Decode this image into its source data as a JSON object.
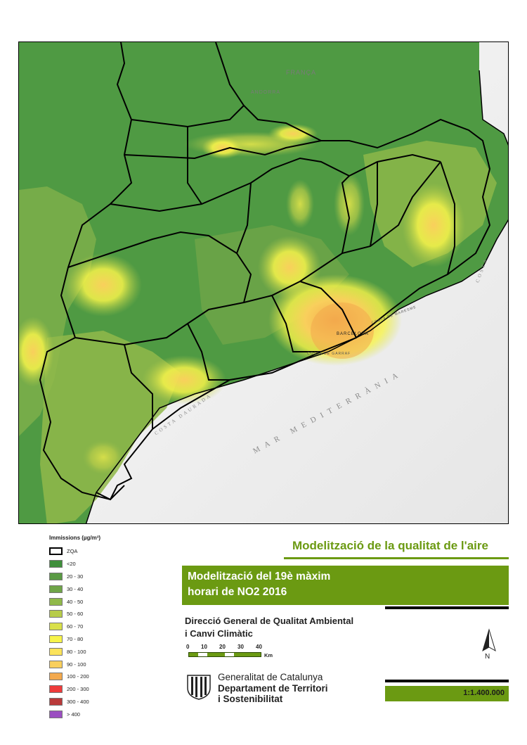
{
  "map": {
    "places": {
      "andorra": "ANDORRA",
      "franca": "FRANÇA",
      "barcelona": "BARCELONA"
    },
    "coast_labels": {
      "costa_daurada": "COSTA DAURADA",
      "mar_mediterrania": "MAR MEDITERRÀNIA",
      "costa_brava": "COSTA",
      "costa_garraf": "COSTA DE GARRAF",
      "costa_maresme": "COSTA DE MARESME"
    },
    "colors": {
      "lt20": "#3f8f3b",
      "20_30": "#5a9a44",
      "30_40": "#6fa548",
      "40_50": "#90b94a",
      "50_60": "#b7cc49",
      "60_70": "#d9e04a",
      "70_80": "#f7f44a",
      "80_100": "#fbe35a",
      "90_100": "#f9cf5c",
      "100_200": "#f3a94d",
      "sea": "#f2f2f2",
      "boundary": "#000000"
    }
  },
  "legend": {
    "title": "Immissions (µg/m³)",
    "items": [
      {
        "label": "ZQA",
        "color": "#ffffff",
        "outline": true
      },
      {
        "label": "<20",
        "color": "#3f8f3b"
      },
      {
        "label": "20 - 30",
        "color": "#5a9a44"
      },
      {
        "label": "30 - 40",
        "color": "#6fa548"
      },
      {
        "label": "40 - 50",
        "color": "#90b94a"
      },
      {
        "label": "50 - 60",
        "color": "#b7cc49"
      },
      {
        "label": "60 - 70",
        "color": "#d9e04a"
      },
      {
        "label": "70 - 80",
        "color": "#f7f44a"
      },
      {
        "label": "80 - 100",
        "color": "#fbe35a"
      },
      {
        "label": "90 - 100",
        "color": "#f9cf5c"
      },
      {
        "label": "100 - 200",
        "color": "#f3a94d"
      },
      {
        "label": "200 - 300",
        "color": "#ee3b3b"
      },
      {
        "label": "300 - 400",
        "color": "#b93a3a"
      },
      {
        "label": "> 400",
        "color": "#9b4fc1"
      }
    ]
  },
  "title": {
    "main": "Modelització de la qualitat de l'aire",
    "subtitle_line1": "Modelització del 19è màxim",
    "subtitle_line2": "horari de NO2 2016"
  },
  "organization": {
    "line1": "Direcció General de Qualitat Ambiental",
    "line2": "i Canvi Climàtic"
  },
  "scale_bar": {
    "ticks": [
      "0",
      "10",
      "20",
      "30",
      "40"
    ],
    "unit": "Km",
    "ratio": "1:1.400.000"
  },
  "north": {
    "label": "N"
  },
  "government": {
    "line1": "Generalitat de Catalunya",
    "line2": "Departament de Territori",
    "line3": "i Sostenibilitat"
  }
}
